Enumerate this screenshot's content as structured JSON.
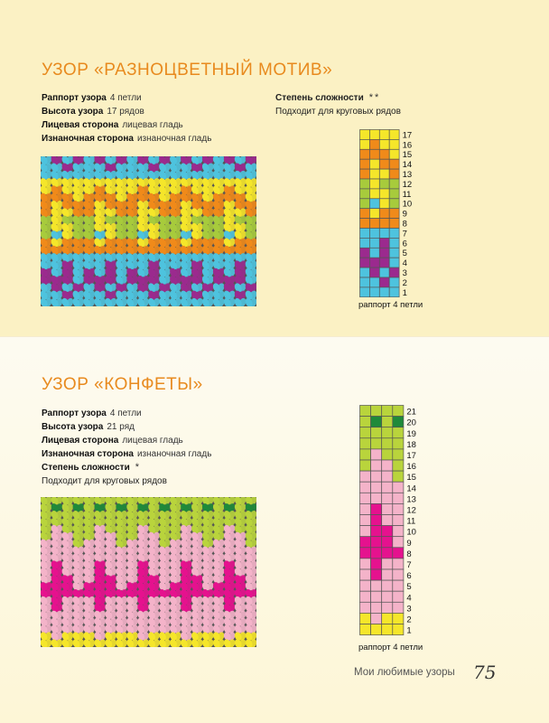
{
  "colors": {
    "yellow": "#f5e62a",
    "orange": "#f08a1a",
    "green": "#a7cb3c",
    "cyan": "#4ec3de",
    "purple": "#9b2a8e",
    "pink": "#f4b3c9",
    "magenta": "#e5128e",
    "lime": "#b9d43c",
    "darkgreen": "#1f8a3a"
  },
  "top": {
    "title": "УЗОР «РАЗНОЦВЕТНЫЙ МОТИВ»",
    "rapport_label": "Раппорт узора",
    "rapport_value": "4 петли",
    "height_label": "Высота узора",
    "height_value": "17 рядов",
    "front_label": "Лицевая сторона",
    "front_value": "лицевая гладь",
    "back_label": "Изнаночная сторона",
    "back_value": "изнаночная гладь",
    "difficulty_label": "Степень сложности",
    "difficulty_stars": "**",
    "round_note": "Подходит для круговых рядов",
    "chart_caption": "раппорт 4 петли",
    "row_numbers": [
      "17",
      "16",
      "15",
      "14",
      "13",
      "12",
      "11",
      "10",
      "9",
      "8",
      "7",
      "6",
      "5",
      "4",
      "3",
      "2",
      "1"
    ],
    "grid": [
      [
        "Y",
        "Y",
        "Y",
        "Y"
      ],
      [
        "Y",
        "O",
        "Y",
        "Y"
      ],
      [
        "O",
        "O",
        "O",
        "Y"
      ],
      [
        "O",
        "Y",
        "O",
        "O"
      ],
      [
        "O",
        "Y",
        "Y",
        "O"
      ],
      [
        "G",
        "Y",
        "G",
        "G"
      ],
      [
        "G",
        "Y",
        "Y",
        "G"
      ],
      [
        "G",
        "C",
        "Y",
        "G"
      ],
      [
        "O",
        "Y",
        "O",
        "O"
      ],
      [
        "O",
        "O",
        "O",
        "O"
      ],
      [
        "C",
        "C",
        "C",
        "C"
      ],
      [
        "C",
        "C",
        "P",
        "C"
      ],
      [
        "P",
        "C",
        "P",
        "C"
      ],
      [
        "P",
        "P",
        "P",
        "C"
      ],
      [
        "C",
        "P",
        "C",
        "P"
      ],
      [
        "C",
        "C",
        "P",
        "C"
      ],
      [
        "C",
        "C",
        "C",
        "C"
      ]
    ]
  },
  "bottom": {
    "title": "УЗОР «КОНФЕТЫ»",
    "rapport_label": "Раппорт узора",
    "rapport_value": "4 петли",
    "height_label": "Высота узора",
    "height_value": "21 ряд",
    "front_label": "Лицевая сторона",
    "front_value": "лицевая гладь",
    "back_label": "Изнаночная сторона",
    "back_value": "изнаночная гладь",
    "difficulty_label": "Степень сложности",
    "difficulty_stars": "*",
    "round_note": "Подходит для круговых рядов",
    "chart_caption": "раппорт 4 петли",
    "row_numbers": [
      "21",
      "20",
      "19",
      "18",
      "17",
      "16",
      "15",
      "14",
      "13",
      "12",
      "11",
      "10",
      "9",
      "8",
      "7",
      "6",
      "5",
      "4",
      "3",
      "2",
      "1"
    ],
    "grid": [
      [
        "L",
        "L",
        "L",
        "L"
      ],
      [
        "L",
        "D",
        "L",
        "D"
      ],
      [
        "L",
        "L",
        "L",
        "L"
      ],
      [
        "L",
        "L",
        "L",
        "L"
      ],
      [
        "L",
        "K",
        "L",
        "L"
      ],
      [
        "L",
        "K",
        "K",
        "L"
      ],
      [
        "K",
        "K",
        "K",
        "L"
      ],
      [
        "K",
        "K",
        "K",
        "K"
      ],
      [
        "K",
        "K",
        "K",
        "K"
      ],
      [
        "K",
        "M",
        "K",
        "K"
      ],
      [
        "K",
        "M",
        "K",
        "K"
      ],
      [
        "K",
        "M",
        "M",
        "K"
      ],
      [
        "M",
        "M",
        "M",
        "K"
      ],
      [
        "M",
        "M",
        "M",
        "M"
      ],
      [
        "K",
        "M",
        "K",
        "K"
      ],
      [
        "K",
        "M",
        "K",
        "K"
      ],
      [
        "K",
        "K",
        "K",
        "K"
      ],
      [
        "K",
        "K",
        "K",
        "K"
      ],
      [
        "K",
        "K",
        "K",
        "K"
      ],
      [
        "Y",
        "K",
        "Y",
        "Y"
      ],
      [
        "Y",
        "Y",
        "Y",
        "Y"
      ]
    ]
  },
  "footer": {
    "book_title": "Мои любимые узоры",
    "page_number": "75"
  }
}
